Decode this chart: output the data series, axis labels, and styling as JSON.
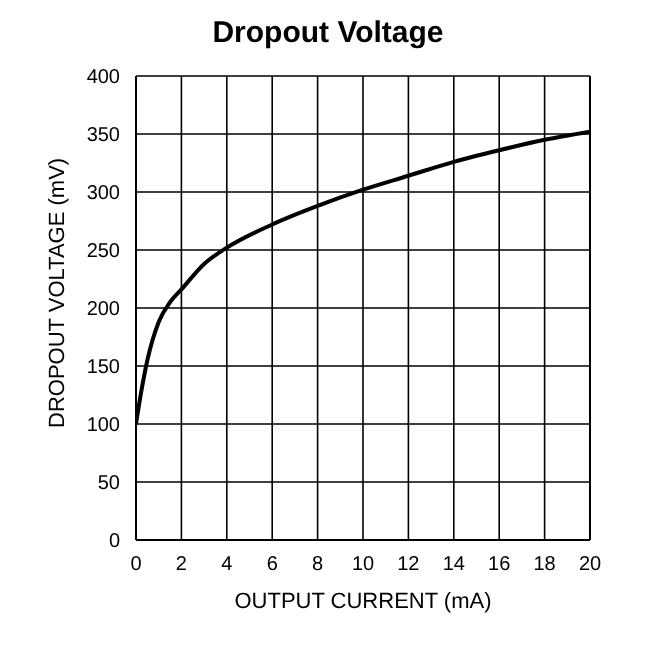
{
  "chart_data": {
    "type": "line",
    "title": "Dropout Voltage",
    "xlabel": "OUTPUT CURRENT (mA)",
    "ylabel": "DROPOUT VOLTAGE (mV)",
    "x": [
      0,
      0.25,
      0.5,
      1,
      1.5,
      2,
      3,
      4,
      6,
      8,
      10,
      12,
      14,
      16,
      18,
      20
    ],
    "series": [
      {
        "color": "#000000",
        "values": [
          100,
          130,
          155,
          188,
          205,
          216,
          238,
          252,
          272,
          288,
          302,
          314,
          326,
          336,
          345,
          352
        ]
      }
    ],
    "xlim": [
      0,
      20
    ],
    "xticks": [
      0,
      2,
      4,
      6,
      8,
      10,
      12,
      14,
      16,
      18,
      20
    ],
    "ylim": [
      0,
      400
    ],
    "yticks": [
      0,
      50,
      100,
      150,
      200,
      250,
      300,
      350,
      400
    ],
    "grid": true,
    "marker": "none",
    "line_style": "solid"
  }
}
